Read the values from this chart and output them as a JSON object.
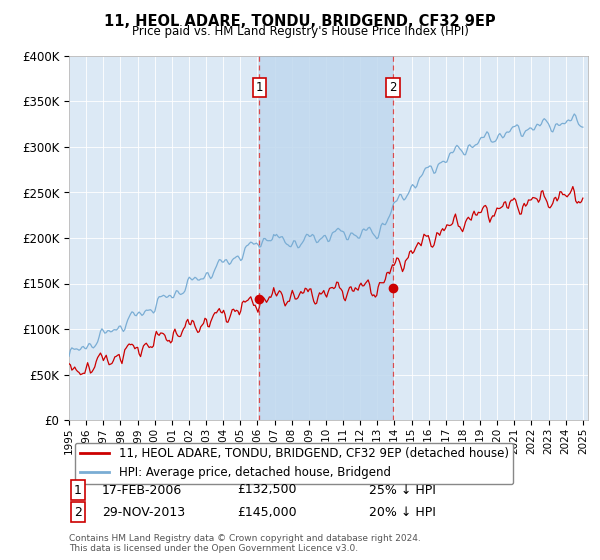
{
  "title": "11, HEOL ADARE, TONDU, BRIDGEND, CF32 9EP",
  "subtitle": "Price paid vs. HM Land Registry's House Price Index (HPI)",
  "hpi_label": "HPI: Average price, detached house, Bridgend",
  "property_label": "11, HEOL ADARE, TONDU, BRIDGEND, CF32 9EP (detached house)",
  "hpi_color": "#7aadd4",
  "property_color": "#cc0000",
  "plot_bg": "#dce9f5",
  "shade_color": "#c0d8ee",
  "ylim": [
    0,
    400000
  ],
  "yticks": [
    0,
    50000,
    100000,
    150000,
    200000,
    250000,
    300000,
    350000,
    400000
  ],
  "ytick_labels": [
    "£0",
    "£50K",
    "£100K",
    "£150K",
    "£200K",
    "£250K",
    "£300K",
    "£350K",
    "£400K"
  ],
  "transaction1_date": "17-FEB-2006",
  "transaction1_price": 132500,
  "transaction1_hpi_diff": "25% ↓ HPI",
  "transaction1_year": 2006.12,
  "transaction2_date": "29-NOV-2013",
  "transaction2_price": 145000,
  "transaction2_hpi_diff": "20% ↓ HPI",
  "transaction2_year": 2013.92,
  "footer": "Contains HM Land Registry data © Crown copyright and database right 2024.\nThis data is licensed under the Open Government Licence v3.0."
}
